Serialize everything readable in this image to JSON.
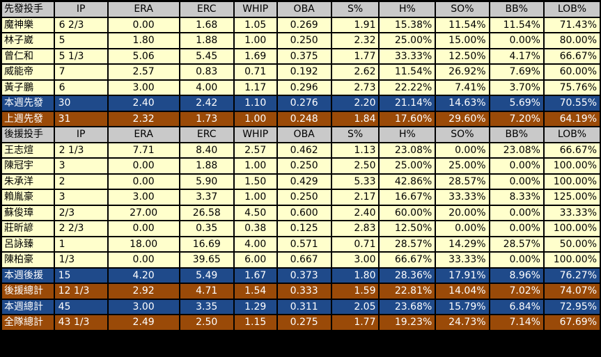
{
  "starters_header": [
    "先發投手",
    "IP",
    "ERA",
    "ERC",
    "WHIP",
    "OBA",
    "S%",
    "H%",
    "SO%",
    "BB%",
    "LOB%"
  ],
  "starters": [
    [
      "魔神樂",
      "6 2/3",
      "0.00",
      "1.68",
      "1.05",
      "0.269",
      "1.91",
      "15.38%",
      "11.54%",
      "11.54%",
      "71.43%"
    ],
    [
      "林子崴",
      "5",
      "1.80",
      "1.88",
      "1.00",
      "0.250",
      "2.32",
      "25.00%",
      "15.00%",
      "0.00%",
      "80.00%"
    ],
    [
      "曾仁和",
      "5 1/3",
      "5.06",
      "5.45",
      "1.69",
      "0.375",
      "1.77",
      "33.33%",
      "12.50%",
      "4.17%",
      "66.67%"
    ],
    [
      "威能帝",
      "7",
      "2.57",
      "0.83",
      "0.71",
      "0.192",
      "2.62",
      "11.54%",
      "26.92%",
      "7.69%",
      "60.00%"
    ],
    [
      "黃子鵬",
      "6",
      "3.00",
      "4.00",
      "1.17",
      "0.296",
      "2.73",
      "22.22%",
      "7.41%",
      "3.70%",
      "75.76%"
    ]
  ],
  "starters_week": [
    "本週先發",
    "30",
    "2.40",
    "2.42",
    "1.10",
    "0.276",
    "2.20",
    "21.14%",
    "14.63%",
    "5.69%",
    "70.55%"
  ],
  "starters_last_week": [
    "上週先發",
    "31",
    "2.32",
    "1.73",
    "1.00",
    "0.248",
    "1.84",
    "17.60%",
    "29.60%",
    "7.20%",
    "64.19%"
  ],
  "relievers_header": [
    "後援投手",
    "IP",
    "ERA",
    "ERC",
    "WHIP",
    "OBA",
    "S%",
    "H%",
    "SO%",
    "BB%",
    "LOB%"
  ],
  "relievers": [
    [
      "王志煊",
      "2 1/3",
      "7.71",
      "8.40",
      "2.57",
      "0.462",
      "1.13",
      "23.08%",
      "0.00%",
      "23.08%",
      "66.67%"
    ],
    [
      "陳冠宇",
      "3",
      "0.00",
      "1.88",
      "1.00",
      "0.250",
      "2.50",
      "25.00%",
      "25.00%",
      "0.00%",
      "100.00%"
    ],
    [
      "朱承洋",
      "2",
      "0.00",
      "5.90",
      "1.50",
      "0.429",
      "5.33",
      "42.86%",
      "28.57%",
      "0.00%",
      "100.00%"
    ],
    [
      "賴胤豪",
      "3",
      "3.00",
      "3.37",
      "1.00",
      "0.250",
      "2.17",
      "16.67%",
      "33.33%",
      "8.33%",
      "125.00%"
    ],
    [
      "蘇俊璋",
      "2/3",
      "27.00",
      "26.58",
      "4.50",
      "0.600",
      "2.40",
      "60.00%",
      "20.00%",
      "0.00%",
      "33.33%"
    ],
    [
      "莊昕諺",
      "2 2/3",
      "0.00",
      "0.35",
      "0.38",
      "0.125",
      "2.83",
      "12.50%",
      "0.00%",
      "0.00%",
      "100.00%"
    ],
    [
      "呂詠臻",
      "1",
      "18.00",
      "16.69",
      "4.00",
      "0.571",
      "0.71",
      "28.57%",
      "14.29%",
      "28.57%",
      "50.00%"
    ],
    [
      "陳柏豪",
      "1/3",
      "0.00",
      "39.65",
      "6.00",
      "0.667",
      "3.00",
      "66.67%",
      "33.33%",
      "0.00%",
      "100.00%"
    ]
  ],
  "summary": [
    {
      "style": "blue",
      "cells": [
        "本週後援",
        "15",
        "4.20",
        "5.49",
        "1.67",
        "0.373",
        "1.80",
        "28.36%",
        "17.91%",
        "8.96%",
        "76.27%"
      ]
    },
    {
      "style": "brown",
      "cells": [
        "後援總計",
        "12 1/3",
        "2.92",
        "4.71",
        "1.54",
        "0.333",
        "1.59",
        "22.81%",
        "14.04%",
        "7.02%",
        "74.07%"
      ]
    },
    {
      "style": "blue",
      "cells": [
        "本週總計",
        "45",
        "3.00",
        "3.35",
        "1.29",
        "0.311",
        "2.05",
        "23.68%",
        "15.79%",
        "6.84%",
        "72.95%"
      ]
    },
    {
      "style": "brown",
      "cells": [
        "全隊總計",
        "43 1/3",
        "2.49",
        "2.50",
        "1.15",
        "0.275",
        "1.77",
        "19.23%",
        "24.73%",
        "7.14%",
        "67.69%"
      ]
    }
  ]
}
